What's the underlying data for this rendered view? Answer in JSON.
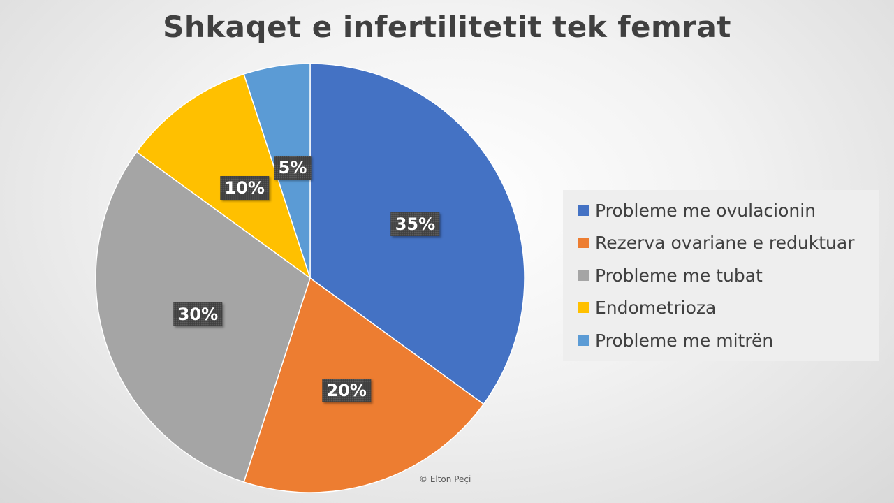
{
  "chart_data": {
    "type": "pie",
    "title": "Shkaqet e infertilitetit tek femrat",
    "categories": [
      "Probleme me ovulacionin",
      "Rezerva ovariane e reduktuar",
      "Probleme me tubat",
      "Endometrioza",
      "Probleme me mitrën"
    ],
    "values": [
      35,
      20,
      30,
      10,
      5
    ],
    "data_labels": [
      "35%",
      "20%",
      "30%",
      "10%",
      "5%"
    ],
    "colors": [
      "#4472C4",
      "#ED7D31",
      "#A5A5A5",
      "#FFC000",
      "#5B9BD5"
    ],
    "legend_position": "right",
    "start_angle": "top",
    "direction": "clockwise"
  },
  "credit": "© Elton Peçi"
}
